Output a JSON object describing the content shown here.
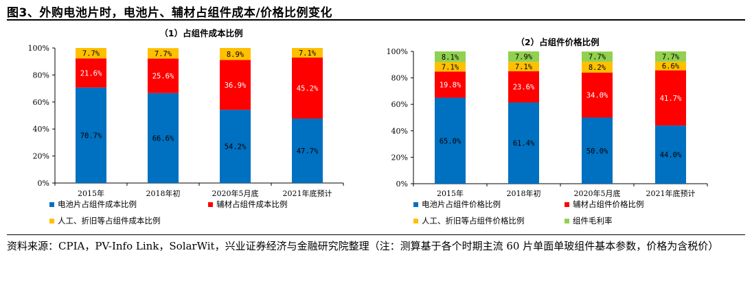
{
  "figure_title": "图3、外购电池片时，电池片、辅材占组件成本/价格比例变化",
  "source_note": "资料来源：CPIA，PV-Info Link，SolarWit，兴业证券经济与金融研究院整理（注：测算基于各个时期主流 60 片单面单玻组件基本参数，价格为含税价）",
  "chart_data": [
    {
      "type": "bar",
      "stacked": true,
      "title": "（1）占组件成本比例",
      "categories": [
        "2015年",
        "2018年初",
        "2020年5月底",
        "2021年底预计"
      ],
      "y_ticks": [
        "0%",
        "20%",
        "40%",
        "60%",
        "80%",
        "100%"
      ],
      "ylim": [
        0,
        100
      ],
      "legend_position": "bottom",
      "series": [
        {
          "name": "电池片占组件成本比例",
          "color": "#0070C0",
          "values": [
            70.7,
            66.6,
            54.2,
            47.7
          ],
          "labels": [
            "70.7%",
            "66.6%",
            "54.2%",
            "47.7%"
          ],
          "label_color": "#000000"
        },
        {
          "name": "辅材占组件成本比例",
          "color": "#FF0000",
          "values": [
            21.6,
            25.6,
            36.9,
            45.2
          ],
          "labels": [
            "21.6%",
            "25.6%",
            "36.9%",
            "45.2%"
          ],
          "label_color": "#ffffff"
        },
        {
          "name": "人工、折旧等占组件成本比例",
          "color": "#FFC000",
          "values": [
            7.7,
            7.7,
            8.9,
            7.1
          ],
          "labels": [
            "7.7%",
            "7.7%",
            "8.9%",
            "7.1%"
          ],
          "label_color": "#000000"
        }
      ]
    },
    {
      "type": "bar",
      "stacked": true,
      "title": "（2）占组件价格比例",
      "categories": [
        "2015年",
        "2018年初",
        "2020年5月底",
        "2021年底预计"
      ],
      "y_ticks": [
        "0%",
        "20%",
        "40%",
        "60%",
        "80%",
        "100%"
      ],
      "ylim": [
        0,
        100
      ],
      "legend_position": "bottom",
      "series": [
        {
          "name": "电池片占组件价格比例",
          "color": "#0070C0",
          "values": [
            65.0,
            61.4,
            50.0,
            44.0
          ],
          "labels": [
            "65.0%",
            "61.4%",
            "50.0%",
            "44.0%"
          ],
          "label_color": "#000000"
        },
        {
          "name": "辅材占组件价格比例",
          "color": "#FF0000",
          "values": [
            19.8,
            23.6,
            34.0,
            41.7
          ],
          "labels": [
            "19.8%",
            "23.6%",
            "34.0%",
            "41.7%"
          ],
          "label_color": "#ffffff"
        },
        {
          "name": "人工、折旧等占组件价格比例",
          "color": "#FFC000",
          "values": [
            7.1,
            7.1,
            8.2,
            6.6
          ],
          "labels": [
            "7.1%",
            "7.1%",
            "8.2%",
            "6.6%"
          ],
          "label_color": "#000000"
        },
        {
          "name": "组件毛利率",
          "color": "#92D050",
          "values": [
            8.1,
            7.9,
            7.7,
            7.7
          ],
          "labels": [
            "8.1%",
            "7.9%",
            "7.7%",
            "7.7%"
          ],
          "label_color": "#000000"
        }
      ]
    }
  ]
}
